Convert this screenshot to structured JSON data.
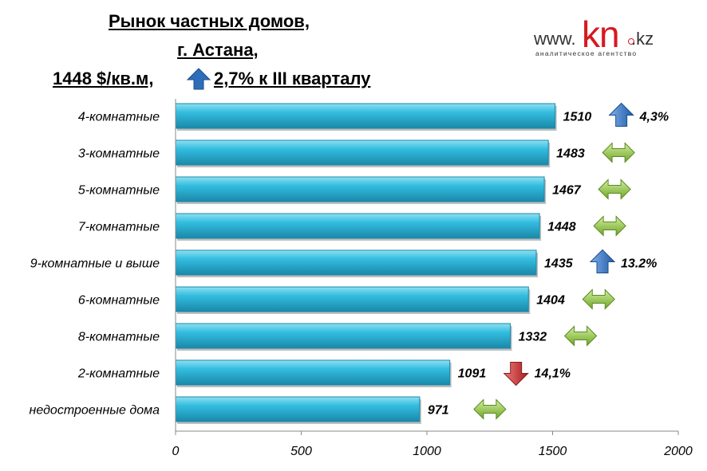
{
  "header": {
    "title_line1": "Рынок частных домов,",
    "title_line2": "г. Астана,",
    "title_line3_price": "1448 $/кв.м,",
    "title_line3_change": "2,7% к III кварталу",
    "title_change_direction": "up"
  },
  "logo": {
    "www": "www.",
    "kn": "kn",
    "kz": ".kz",
    "subtitle": "аналитическое агентство"
  },
  "colors": {
    "bar": "#2bb3d6",
    "bar_dark": "#1a88a8",
    "arrow_up": "#2e6db8",
    "arrow_down": "#c62828",
    "arrow_flat": "#8cc43c",
    "logo_red": "#d71920"
  },
  "chart_data": {
    "type": "bar",
    "orientation": "horizontal",
    "categories": [
      "4-комнатные",
      "3-комнатные",
      "5-комнатные",
      "7-комнатные",
      "9-комнатные и выше",
      "6-комнатные",
      "8-комнатные",
      "2-комнатные",
      "недостроенные дома"
    ],
    "values": [
      1510,
      1483,
      1467,
      1448,
      1435,
      1404,
      1332,
      1091,
      971
    ],
    "changes": [
      {
        "direction": "up",
        "label": "4,3%"
      },
      {
        "direction": "flat",
        "label": ""
      },
      {
        "direction": "flat",
        "label": ""
      },
      {
        "direction": "flat",
        "label": ""
      },
      {
        "direction": "up",
        "label": "13.2%"
      },
      {
        "direction": "flat",
        "label": ""
      },
      {
        "direction": "flat",
        "label": ""
      },
      {
        "direction": "down",
        "label": "14,1%"
      },
      {
        "direction": "flat",
        "label": ""
      }
    ],
    "xlim": [
      0,
      2000
    ],
    "xticks": [
      0,
      500,
      1000,
      1500,
      2000
    ],
    "tick_labels": [
      "0",
      "500",
      "1000",
      "1500",
      "2000"
    ],
    "grid": false
  }
}
